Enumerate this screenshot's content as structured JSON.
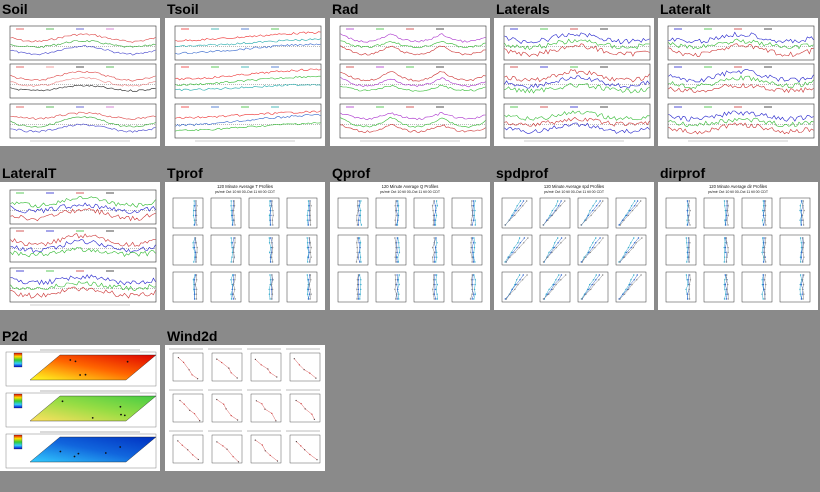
{
  "tiles": [
    {
      "key": "soil",
      "label": "Soil",
      "kind": "ts3"
    },
    {
      "key": "tsoil",
      "label": "Tsoil",
      "kind": "ts3"
    },
    {
      "key": "rad",
      "label": "Rad",
      "kind": "ts3"
    },
    {
      "key": "laterals",
      "label": "Laterals",
      "kind": "ts3"
    },
    {
      "key": "lateralt",
      "label": "Lateralt",
      "kind": "ts3"
    },
    {
      "key": "lateralT",
      "label": "LateralT",
      "kind": "ts3"
    },
    {
      "key": "tprof",
      "label": "Tprof",
      "kind": "prof",
      "title": "120 Minute Average T Profiles",
      "subtitle": "ps/mé Oct 10 till 00-Oct 11 till 00 CDT"
    },
    {
      "key": "qprof",
      "label": "Qprof",
      "kind": "prof",
      "title": "120 Minute Average Q Profiles",
      "subtitle": "ps/mé Oct 10 till 00-Oct 11 till 00 CDT"
    },
    {
      "key": "spdprof",
      "label": "spdprof",
      "kind": "prof",
      "title": "120 Minute Average spd Profiles",
      "subtitle": "ps/mé Oct 10 till 00-Oct 11 till 00 CDT"
    },
    {
      "key": "dirprof",
      "label": "dirprof",
      "kind": "prof",
      "title": "120 Minute Average dir Profiles",
      "subtitle": "ps/mé Oct 10 till 00-Oct 11 till 00 CDT"
    },
    {
      "key": "p2d",
      "label": "P2d",
      "kind": "p2d"
    },
    {
      "key": "wind2d",
      "label": "Wind2d",
      "kind": "wind2d"
    }
  ],
  "icons": [
    "chart-thumbnail-icon"
  ]
}
